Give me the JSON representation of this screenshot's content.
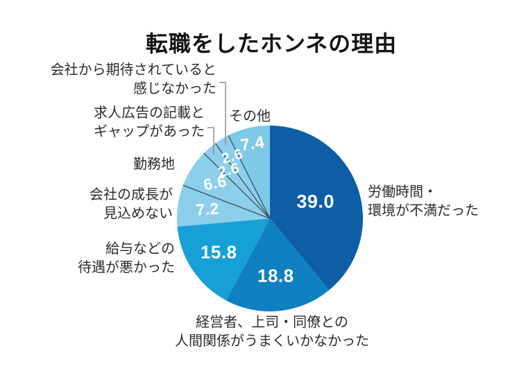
{
  "title": "転職をしたホンネの理由",
  "chart_data": {
    "type": "pie",
    "unit": "%",
    "total": 100.0,
    "direction": "clockwise",
    "start_angle": "12-oclock",
    "legend": "none, direct labels around pie",
    "value_labels": "white bold numbers inside slices, one decimal",
    "slices": [
      {
        "label": "労働時間・環境が不満だった",
        "label_lines": [
          "労働時間・",
          "環境が不満だった"
        ],
        "value": 39.0,
        "color": "#0d5ea5"
      },
      {
        "label": "経営者、上司・同僚との人間関係がうまくいかなかった",
        "label_lines": [
          "経営者、上司・同僚との",
          "人間関係がうまくいかなかった"
        ],
        "value": 18.8,
        "color": "#0f80c1"
      },
      {
        "label": "給与などの待遇が悪かった",
        "label_lines": [
          "給与などの",
          "待遇が悪かった"
        ],
        "value": 15.8,
        "color": "#17a0d6"
      },
      {
        "label": "会社の成長が見込めない",
        "label_lines": [
          "会社の成長が",
          "見込めない"
        ],
        "value": 7.2,
        "color": "#8ccfeb"
      },
      {
        "label": "勤務地",
        "label_lines": [
          "勤務地"
        ],
        "value": 6.6,
        "color": "#8ccfeb"
      },
      {
        "label": "求人広告の記載とギャップがあった",
        "label_lines": [
          "求人広告の記載と",
          "ギャップがあった"
        ],
        "value": 2.6,
        "color": "#8ccfeb"
      },
      {
        "label": "会社から期待されていると感じなかった",
        "label_lines": [
          "会社から期待されていると",
          "感じなかった"
        ],
        "value": 2.6,
        "color": "#8ccfeb"
      },
      {
        "label": "その他",
        "label_lines": [
          "その他"
        ],
        "value": 7.4,
        "color": "#7ec9e8"
      }
    ]
  },
  "colors": {
    "background": "#ffffff",
    "title_text": "#141414",
    "label_text": "#2b2b2b",
    "value_text": "#ffffff",
    "slice_separator": "#37424c",
    "leader_line": "#8e8e8e"
  }
}
